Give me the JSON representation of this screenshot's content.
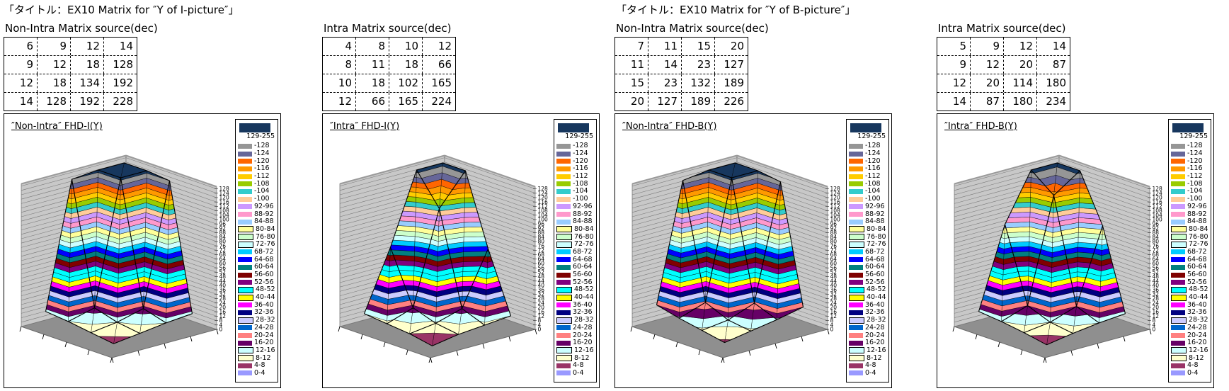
{
  "headers": [
    {
      "text": "「タイトル：EX10 Matrix for ″Y of I-picture″」"
    },
    {
      "text": "「タイトル：EX10 Matrix for ″Y of B-picture″」"
    }
  ],
  "panels": [
    {
      "matrix_label": "Non-Intra Matrix source(dec)"
    },
    {
      "matrix_label": "Intra Matrix source(dec)"
    },
    {
      "matrix_label": "Non-Intra Matrix source(dec)"
    },
    {
      "matrix_label": "Intra Matrix source(dec)"
    }
  ],
  "chart_data": {
    "type": "surface",
    "grid": "4x4",
    "band_size": 4,
    "value_clip": 130,
    "z_axis": {
      "ticks": [
        0,
        4,
        8,
        12,
        16,
        20,
        24,
        28,
        32,
        36,
        40,
        44,
        48,
        52,
        56,
        60,
        64,
        68,
        72,
        76,
        80,
        84,
        88,
        92,
        96,
        100,
        104,
        108,
        112,
        116,
        120,
        124,
        128
      ]
    },
    "top_band": {
      "label": "129-255",
      "color": "#17375E",
      "threshold": 128
    },
    "band_colors": [
      "#9999FF",
      "#993366",
      "#FFFFCC",
      "#CCFFFF",
      "#660066",
      "#FF8080",
      "#0066CC",
      "#CCCCFF",
      "#000080",
      "#FF00FF",
      "#FFFF00",
      "#00FFFF",
      "#00FFFF",
      "#800080",
      "#800000",
      "#008080",
      "#0000FF",
      "#00CCFF",
      "#CCFFFF",
      "#CCFFCC",
      "#FFFF99",
      "#99CCFF",
      "#FF99CC",
      "#CC99FF",
      "#FFCC99",
      "#33CCCC",
      "#99CC00",
      "#FFCC00",
      "#FF9900",
      "#FF6600",
      "#666699",
      "#969696"
    ],
    "charts": [
      {
        "title": "″Non-Intra″ FHD-I(Y)",
        "matrix": [
          [
            6,
            9,
            12,
            14
          ],
          [
            9,
            12,
            18,
            128
          ],
          [
            12,
            18,
            134,
            192
          ],
          [
            14,
            128,
            192,
            228
          ]
        ]
      },
      {
        "title": "″Intra″ FHD-I(Y)",
        "matrix": [
          [
            4,
            8,
            10,
            12
          ],
          [
            8,
            11,
            18,
            66
          ],
          [
            10,
            18,
            102,
            165
          ],
          [
            12,
            66,
            165,
            224
          ]
        ]
      },
      {
        "title": "″Non-Intra″ FHD-B(Y)",
        "matrix": [
          [
            7,
            11,
            15,
            20
          ],
          [
            11,
            14,
            23,
            127
          ],
          [
            15,
            23,
            132,
            189
          ],
          [
            20,
            127,
            189,
            226
          ]
        ]
      },
      {
        "title": "″Intra″ FHD-B(Y)",
        "matrix": [
          [
            5,
            9,
            12,
            14
          ],
          [
            9,
            12,
            20,
            87
          ],
          [
            12,
            20,
            114,
            180
          ],
          [
            14,
            87,
            180,
            234
          ]
        ]
      }
    ],
    "legend_items": [
      {
        "label": "-128",
        "color": "#969696",
        "outlined": false
      },
      {
        "label": "-124",
        "color": "#666699",
        "outlined": false
      },
      {
        "label": "-120",
        "color": "#FF6600",
        "outlined": false
      },
      {
        "label": "-116",
        "color": "#FF9900",
        "outlined": false
      },
      {
        "label": "-112",
        "color": "#FFCC00",
        "outlined": false
      },
      {
        "label": "-108",
        "color": "#99CC00",
        "outlined": false
      },
      {
        "label": "-104",
        "color": "#33CCCC",
        "outlined": false
      },
      {
        "label": "-100",
        "color": "#FFCC99",
        "outlined": false
      },
      {
        "label": "92-96",
        "color": "#CC99FF",
        "outlined": false
      },
      {
        "label": "88-92",
        "color": "#FF99CC",
        "outlined": false
      },
      {
        "label": "84-88",
        "color": "#99CCFF",
        "outlined": false
      },
      {
        "label": "80-84",
        "color": "#FFFF99",
        "outlined": true
      },
      {
        "label": "76-80",
        "color": "#CCFFCC",
        "outlined": true
      },
      {
        "label": "72-76",
        "color": "#CCFFFF",
        "outlined": true
      },
      {
        "label": "68-72",
        "color": "#00CCFF",
        "outlined": false
      },
      {
        "label": "64-68",
        "color": "#0000FF",
        "outlined": false
      },
      {
        "label": "60-64",
        "color": "#008080",
        "outlined": false
      },
      {
        "label": "56-60",
        "color": "#800000",
        "outlined": false
      },
      {
        "label": "52-56",
        "color": "#800080",
        "outlined": false
      },
      {
        "label": "48-52",
        "color": "#00FFFF",
        "outlined": true
      },
      {
        "label": "40-44",
        "color": "#FFFF00",
        "outlined": true
      },
      {
        "label": "36-40",
        "color": "#FF00FF",
        "outlined": false
      },
      {
        "label": "32-36",
        "color": "#000080",
        "outlined": false
      },
      {
        "label": "28-32",
        "color": "#CCCCFF",
        "outlined": true
      },
      {
        "label": "24-28",
        "color": "#0066CC",
        "outlined": false
      },
      {
        "label": "20-24",
        "color": "#FF8080",
        "outlined": false
      },
      {
        "label": "16-20",
        "color": "#660066",
        "outlined": false
      },
      {
        "label": "12-16",
        "color": "#CCFFFF",
        "outlined": true
      },
      {
        "label": "8-12",
        "color": "#FFFFCC",
        "outlined": true
      },
      {
        "label": "4-8",
        "color": "#993366",
        "outlined": false
      },
      {
        "label": "0-4",
        "color": "#9999FF",
        "outlined": false
      }
    ]
  },
  "colors": {
    "floor": "#8F8F8F",
    "wall": "#C8C8C8",
    "wall_grid": "#787878",
    "mesh": "#000000"
  }
}
